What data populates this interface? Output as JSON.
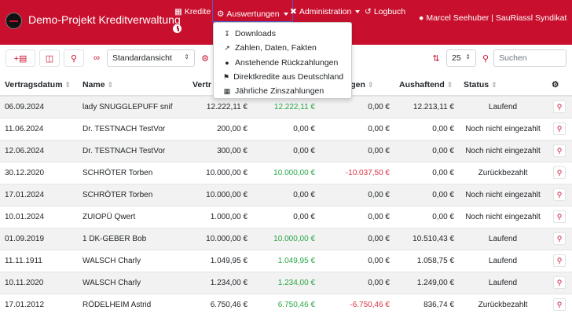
{
  "brand": "Demo-Projekt Kreditverwaltung",
  "nav": {
    "kredite": "Kredite",
    "auswertungen": "Auswertungen",
    "administration": "Administration",
    "logbuch": "Logbuch",
    "user": "Marcel Seehuber | SauRiassl Syndikat"
  },
  "dropdown": [
    {
      "label": "Downloads",
      "icon": "download-icon"
    },
    {
      "label": "Zahlen, Daten, Fakten",
      "icon": "chart-icon"
    },
    {
      "label": "Anstehende Rückzahlungen",
      "icon": "coins-icon"
    },
    {
      "label": "Direktkredite aus Deutschland",
      "icon": "flag-icon"
    },
    {
      "label": "Jährliche Zinszahlungen",
      "icon": "calendar-icon"
    }
  ],
  "toolbar": {
    "view_select": "Standardansicht",
    "page_size": "25",
    "search_placeholder": "Suchen"
  },
  "table": {
    "columns": [
      "Vertragsdatum",
      "Name",
      "Vertr",
      "",
      "zahlungen",
      "Aushaftend",
      "Status"
    ],
    "rows": [
      {
        "date": "06.09.2024",
        "name": "lady SNUGGLEPUFF snif",
        "betrag": "12.222,11 €",
        "eingezahlt": "12.222,11 €",
        "rueck": "0,00 €",
        "aushaftend": "12.213,11 €",
        "status": "Laufend"
      },
      {
        "date": "11.06.2024",
        "name": "Dr. TESTNACH TestVor",
        "betrag": "200,00 €",
        "eingezahlt": "0,00 €",
        "rueck": "0,00 €",
        "aushaftend": "0,00 €",
        "status": "Noch nicht eingezahlt"
      },
      {
        "date": "12.06.2024",
        "name": "Dr. TESTNACH TestVor",
        "betrag": "300,00 €",
        "eingezahlt": "0,00 €",
        "rueck": "0,00 €",
        "aushaftend": "0,00 €",
        "status": "Noch nicht eingezahlt"
      },
      {
        "date": "30.12.2020",
        "name": "SCHRÖTER Torben",
        "betrag": "10.000,00 €",
        "eingezahlt": "10.000,00 €",
        "rueck": "-10.037,50 €",
        "aushaftend": "0,00 €",
        "status": "Zurückbezahlt"
      },
      {
        "date": "17.01.2024",
        "name": "SCHRÖTER Torben",
        "betrag": "10.000,00 €",
        "eingezahlt": "0,00 €",
        "rueck": "0,00 €",
        "aushaftend": "0,00 €",
        "status": "Noch nicht eingezahlt"
      },
      {
        "date": "10.01.2024",
        "name": "ZUIOPÜ Qwert",
        "betrag": "1.000,00 €",
        "eingezahlt": "0,00 €",
        "rueck": "0,00 €",
        "aushaftend": "0,00 €",
        "status": "Noch nicht eingezahlt"
      },
      {
        "date": "01.09.2019",
        "name": "1 DK-GEBER Bob",
        "betrag": "10.000,00 €",
        "eingezahlt": "10.000,00 €",
        "rueck": "0,00 €",
        "aushaftend": "10.510,43 €",
        "status": "Laufend"
      },
      {
        "date": "11.11.1911",
        "name": "WALSCH Charly",
        "betrag": "1.049,95 €",
        "eingezahlt": "1.049,95 €",
        "rueck": "0,00 €",
        "aushaftend": "1.058,75 €",
        "status": "Laufend"
      },
      {
        "date": "10.11.2020",
        "name": "WALSCH Charly",
        "betrag": "1.234,00 €",
        "eingezahlt": "1.234,00 €",
        "rueck": "0,00 €",
        "aushaftend": "1.249,00 €",
        "status": "Laufend"
      },
      {
        "date": "17.01.2012",
        "name": "RÖDELHEIM Astrid",
        "betrag": "6.750,46 €",
        "eingezahlt": "6.750,46 €",
        "rueck": "-6.750,46 €",
        "aushaftend": "836,74 €",
        "status": "Zurückbezahlt"
      }
    ]
  },
  "colors": {
    "accent": "#c8102e",
    "positive": "#28a745",
    "negative": "#dc3545"
  }
}
